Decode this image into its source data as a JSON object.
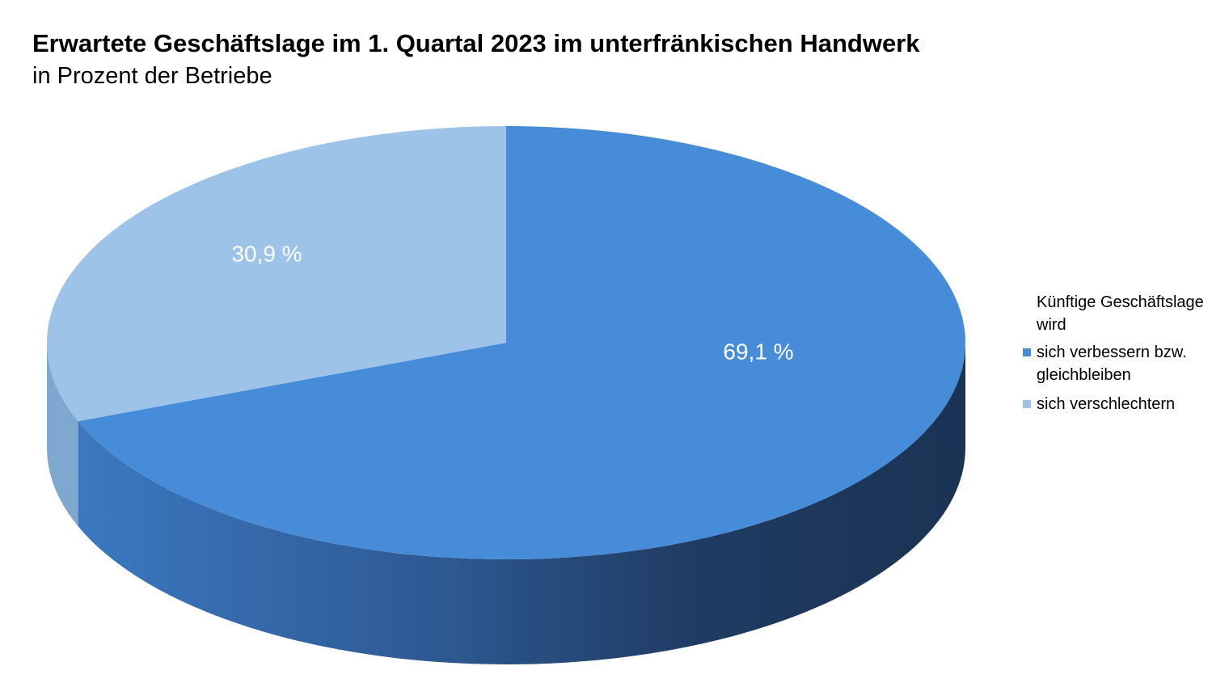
{
  "chart_data": {
    "type": "pie",
    "title": "Erwartete Geschäftslage im 1. Quartal 2023 im unterfränkischen Handwerk",
    "subtitle": "in Prozent der Betriebe",
    "legend": {
      "title": "Künftige Geschäftslage wird",
      "placement": "right"
    },
    "slices": [
      {
        "label": "sich verbessern bzw. gleichbleiben",
        "value": 69.1,
        "data_label": "69,1 %",
        "color": "#468cd8",
        "side_color": "#1d3557"
      },
      {
        "label": "sich verschlechtern",
        "value": 30.9,
        "data_label": "30,9 %",
        "color": "#9ec3e8",
        "side_color": "#7fa8d0"
      }
    ],
    "style": "3d"
  }
}
